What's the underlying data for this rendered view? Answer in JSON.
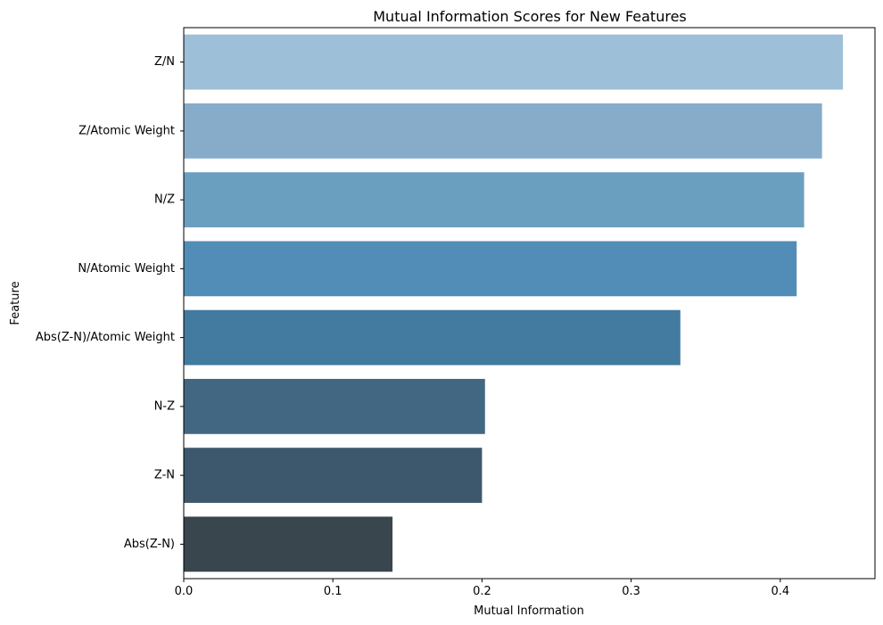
{
  "chart_data": {
    "type": "bar",
    "orientation": "horizontal",
    "title": "Mutual Information Scores for New Features",
    "xlabel": "Mutual Information",
    "ylabel": "Feature",
    "xlim": [
      0,
      0.4635
    ],
    "xticks": [
      0.0,
      0.1,
      0.2,
      0.3,
      0.4
    ],
    "xtick_labels": [
      "0.0",
      "0.1",
      "0.2",
      "0.3",
      "0.4"
    ],
    "grid": false,
    "categories": [
      "Z/N",
      "Z/Atomic Weight",
      "N/Z",
      "N/Atomic Weight",
      "Abs(Z-N)/Atomic Weight",
      "N-Z",
      "Z-N",
      "Abs(Z-N)"
    ],
    "values": [
      0.442,
      0.428,
      0.416,
      0.411,
      0.333,
      0.202,
      0.2,
      0.14
    ],
    "colors": [
      "#9dbfd7",
      "#86acca",
      "#6b9fc0",
      "#528db7",
      "#427aa0",
      "#416783",
      "#3d586c",
      "#39464d"
    ]
  }
}
